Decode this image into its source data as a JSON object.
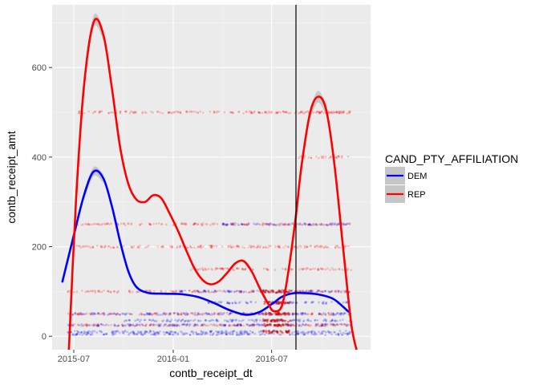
{
  "chart_data": {
    "type": "line",
    "xlabel": "contb_receipt_dt",
    "ylabel": "contb_receipt_amt",
    "x_ticks": [
      "2015-07",
      "2016-01",
      "2016-07"
    ],
    "y_ticks": [
      0,
      200,
      400,
      600
    ],
    "ylim": [
      -30,
      740
    ],
    "xlim": [
      "2015-05-22",
      "2016-12-31"
    ],
    "grid": true,
    "vline": {
      "x": "2016-08-15",
      "color": "#000000"
    },
    "legend": {
      "title": "CAND_PTY_AFFILIATION",
      "placement": "right"
    },
    "series": [
      {
        "name": "DEM",
        "color": "#0000ff",
        "x": [
          "2015-06-10",
          "2015-07-01",
          "2015-07-20",
          "2015-08-07",
          "2015-08-25",
          "2015-09-10",
          "2015-09-25",
          "2015-10-10",
          "2015-10-25",
          "2015-11-15",
          "2015-12-15",
          "2016-01-15",
          "2016-02-15",
          "2016-03-15",
          "2016-04-15",
          "2016-05-15",
          "2016-06-10",
          "2016-07-05",
          "2016-07-20",
          "2016-08-10",
          "2016-09-05",
          "2016-10-01",
          "2016-10-25",
          "2016-11-20"
        ],
        "y": [
          122,
          225,
          315,
          368,
          352,
          288,
          210,
          145,
          110,
          97,
          95,
          94,
          88,
          75,
          58,
          48,
          55,
          75,
          88,
          96,
          96,
          92,
          82,
          55
        ]
      },
      {
        "name": "REP",
        "color": "#ff0000",
        "x": [
          "2015-06-22",
          "2015-07-05",
          "2015-07-20",
          "2015-08-07",
          "2015-08-25",
          "2015-09-10",
          "2015-09-25",
          "2015-10-10",
          "2015-10-25",
          "2015-11-10",
          "2015-11-25",
          "2015-12-10",
          "2015-12-25",
          "2016-01-10",
          "2016-01-25",
          "2016-02-10",
          "2016-02-25",
          "2016-03-10",
          "2016-03-25",
          "2016-04-10",
          "2016-04-25",
          "2016-05-10",
          "2016-05-25",
          "2016-06-10",
          "2016-06-25",
          "2016-07-05",
          "2016-07-20",
          "2016-08-01",
          "2016-08-15",
          "2016-08-25",
          "2016-09-10",
          "2016-09-25",
          "2016-10-10",
          "2016-10-25",
          "2016-11-10",
          "2016-11-25",
          "2016-12-05"
        ],
        "y": [
          -30,
          300,
          560,
          702,
          672,
          550,
          420,
          340,
          305,
          300,
          315,
          308,
          275,
          235,
          192,
          150,
          125,
          116,
          122,
          142,
          163,
          168,
          145,
          105,
          72,
          56,
          68,
          145,
          270,
          378,
          498,
          535,
          505,
          385,
          200,
          30,
          -30
        ]
      }
    ],
    "ribbons": [
      {
        "name": "DEM",
        "x": [
          "2015-07-20",
          "2015-08-07",
          "2015-08-25"
        ],
        "lower": [
          305,
          358,
          342
        ],
        "upper": [
          325,
          378,
          362
        ]
      },
      {
        "name": "REP",
        "x": [
          "2015-07-20",
          "2015-08-07",
          "2015-08-25",
          "2016-09-10",
          "2016-09-25",
          "2016-10-10"
        ],
        "lower": [
          548,
          690,
          660,
          486,
          522,
          493
        ],
        "upper": [
          572,
          716,
          684,
          510,
          548,
          517
        ]
      }
    ],
    "point_bands": [
      {
        "y": 500,
        "series": "REP",
        "x_range": [
          "2015-07-10",
          "2016-11-25"
        ]
      },
      {
        "y": 500,
        "series": "REP",
        "x_range": [
          "2016-08-20",
          "2016-11-15"
        ]
      },
      {
        "y": 400,
        "series": "REP",
        "x_range": [
          "2016-08-20",
          "2016-11-20"
        ]
      },
      {
        "y": 250,
        "series": "REP",
        "x_range": [
          "2015-07-01",
          "2016-11-25"
        ]
      },
      {
        "y": 250,
        "series": "DEM",
        "x_range": [
          "2016-04-01",
          "2016-11-25"
        ]
      },
      {
        "y": 200,
        "series": "REP",
        "x_range": [
          "2015-07-01",
          "2016-11-25"
        ]
      },
      {
        "y": 150,
        "series": "REP",
        "x_range": [
          "2016-02-01",
          "2016-11-25"
        ]
      },
      {
        "y": 100,
        "series": "REP",
        "x_range": [
          "2015-06-20",
          "2016-11-25"
        ]
      },
      {
        "y": 100,
        "series": "DEM",
        "x_range": [
          "2016-01-10",
          "2016-11-25"
        ]
      },
      {
        "y": 75,
        "series": "DEM",
        "x_range": [
          "2016-03-01",
          "2016-11-25"
        ]
      },
      {
        "y": 50,
        "series": "REP",
        "x_range": [
          "2015-06-20",
          "2016-11-25"
        ]
      },
      {
        "y": 50,
        "series": "DEM",
        "x_range": [
          "2015-06-20",
          "2016-11-25"
        ]
      },
      {
        "y": 35,
        "series": "DEM",
        "x_range": [
          "2015-10-01",
          "2016-11-25"
        ]
      },
      {
        "y": 25,
        "series": "REP",
        "x_range": [
          "2015-06-20",
          "2016-11-25"
        ]
      },
      {
        "y": 25,
        "series": "DEM",
        "x_range": [
          "2015-06-20",
          "2016-11-25"
        ]
      },
      {
        "y": 10,
        "series": "DEM",
        "x_range": [
          "2015-06-20",
          "2016-11-25"
        ]
      },
      {
        "y": 5,
        "series": "DEM",
        "x_range": [
          "2015-06-20",
          "2016-11-25"
        ]
      }
    ]
  }
}
